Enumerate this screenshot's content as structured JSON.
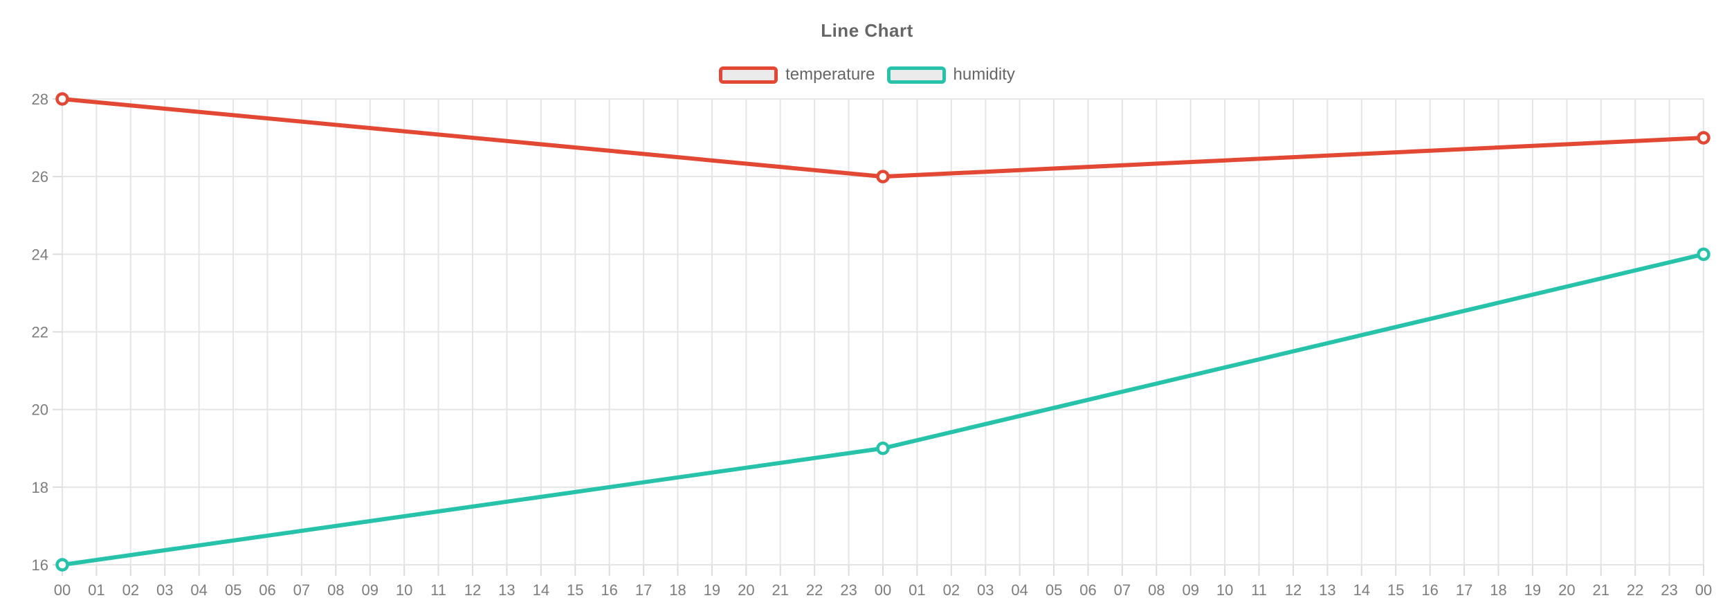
{
  "title": "Line Chart",
  "colors": {
    "background": "#ffffff",
    "title_text": "#666666",
    "legend_text": "#666666",
    "legend_swatch_fill": "#ebebeb",
    "axis_label_text": "#7d7d7d",
    "gridline": "#e5e5e5",
    "tick": "#dcdcdc",
    "marker_fill": "#ffffff",
    "temperature_series": "#e24834",
    "humidity_series": "#26c3aa"
  },
  "legend": {
    "items": [
      {
        "label": "temperature",
        "color": "#e24834"
      },
      {
        "label": "humidity",
        "color": "#26c3aa"
      }
    ]
  },
  "chart_data": {
    "type": "line",
    "title": "Line Chart",
    "xlabel": "",
    "ylabel": "",
    "x_categories": [
      "00",
      "01",
      "02",
      "03",
      "04",
      "05",
      "06",
      "07",
      "08",
      "09",
      "10",
      "11",
      "12",
      "13",
      "14",
      "15",
      "16",
      "17",
      "18",
      "19",
      "20",
      "21",
      "22",
      "23",
      "00",
      "01",
      "02",
      "03",
      "04",
      "05",
      "06",
      "07",
      "08",
      "09",
      "10",
      "11",
      "12",
      "13",
      "14",
      "15",
      "16",
      "17",
      "18",
      "19",
      "20",
      "21",
      "22",
      "23",
      "00"
    ],
    "ylim": [
      16,
      28
    ],
    "y_ticks": [
      16,
      18,
      20,
      22,
      24,
      26,
      28
    ],
    "grid": true,
    "legend_position": "top",
    "marker_style": "open-circle",
    "series": [
      {
        "name": "temperature",
        "color": "#e24834",
        "points": [
          {
            "i": 0,
            "v": 28
          },
          {
            "i": 24,
            "v": 26
          },
          {
            "i": 48,
            "v": 27
          }
        ]
      },
      {
        "name": "humidity",
        "color": "#26c3aa",
        "points": [
          {
            "i": 0,
            "v": 16
          },
          {
            "i": 24,
            "v": 19
          },
          {
            "i": 48,
            "v": 24
          }
        ]
      }
    ]
  }
}
